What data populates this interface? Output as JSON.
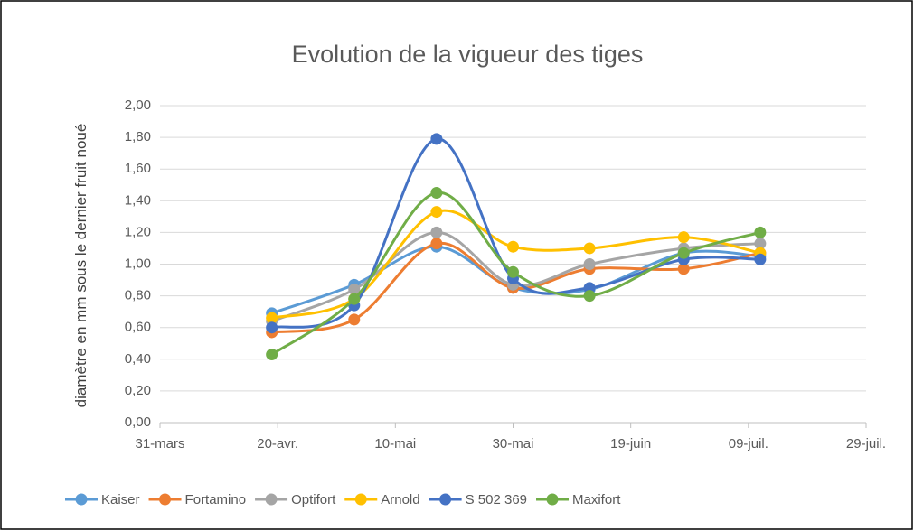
{
  "chart_data": {
    "type": "line",
    "title": "Evolution de la vigueur des tiges",
    "y_label": "diamètre en mm sous le dernier fruit noué",
    "x": [
      109,
      123,
      137,
      150,
      163,
      179,
      192
    ],
    "xlim": [
      90,
      210
    ],
    "xticks": [
      {
        "value": 90,
        "label": "31-mars"
      },
      {
        "value": 110,
        "label": "20-avr."
      },
      {
        "value": 130,
        "label": "10-mai"
      },
      {
        "value": 150,
        "label": "30-mai"
      },
      {
        "value": 170,
        "label": "19-juin"
      },
      {
        "value": 190,
        "label": "09-juil."
      },
      {
        "value": 210,
        "label": "29-juil."
      }
    ],
    "ylim": [
      0,
      2
    ],
    "yticks": [
      {
        "value": 0,
        "label": "0,00"
      },
      {
        "value": 0.2,
        "label": "0,20"
      },
      {
        "value": 0.4,
        "label": "0,40"
      },
      {
        "value": 0.6,
        "label": "0,60"
      },
      {
        "value": 0.8,
        "label": "0,80"
      },
      {
        "value": 1,
        "label": "1,00"
      },
      {
        "value": 1.2,
        "label": "1,20"
      },
      {
        "value": 1.4,
        "label": "1,40"
      },
      {
        "value": 1.6,
        "label": "1,60"
      },
      {
        "value": 1.8,
        "label": "1,80"
      },
      {
        "value": 2,
        "label": "2,00"
      }
    ],
    "grid": true,
    "legend": "bottom",
    "series": [
      {
        "name": "Kaiser",
        "color": "#5b9bd5",
        "values": [
          0.69,
          0.87,
          1.11,
          0.85,
          0.84,
          1.07,
          1.05
        ]
      },
      {
        "name": "Fortamino",
        "color": "#ed7d31",
        "values": [
          0.57,
          0.65,
          1.13,
          0.85,
          0.97,
          0.97,
          1.07
        ]
      },
      {
        "name": "Optifort",
        "color": "#a5a5a5",
        "values": [
          0.64,
          0.84,
          1.2,
          0.87,
          1.0,
          1.1,
          1.13
        ]
      },
      {
        "name": "Arnold",
        "color": "#ffc000",
        "values": [
          0.66,
          0.78,
          1.33,
          1.11,
          1.1,
          1.17,
          1.07
        ]
      },
      {
        "name": "S 502 369",
        "color": "#4472c4",
        "values": [
          0.6,
          0.74,
          1.79,
          0.91,
          0.85,
          1.03,
          1.03
        ]
      },
      {
        "name": "Maxifort",
        "color": "#70ad47",
        "values": [
          0.43,
          0.78,
          1.45,
          0.95,
          0.8,
          1.07,
          1.2
        ]
      }
    ]
  }
}
